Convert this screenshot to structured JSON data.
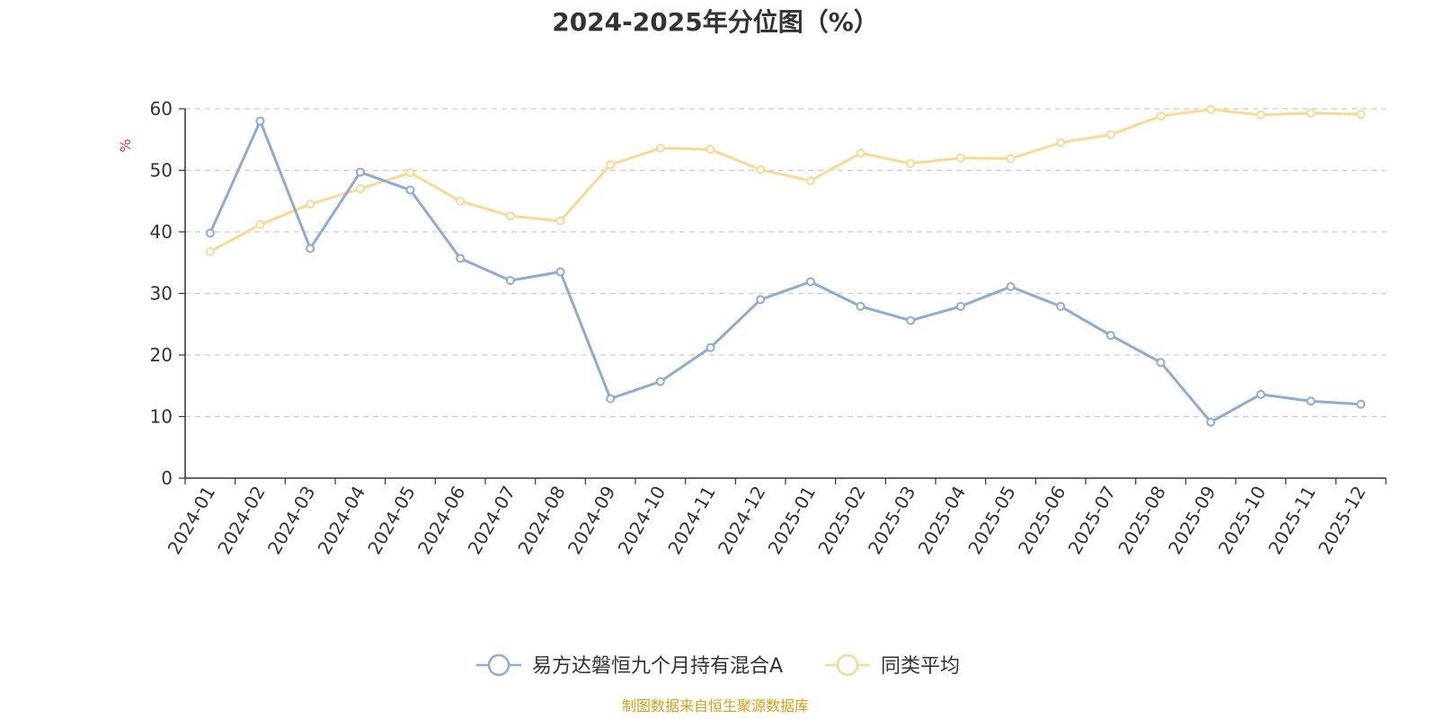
{
  "chart_data": {
    "type": "line",
    "title": "2024-2025年分位图（%）",
    "ylabel": "%",
    "ylim": [
      0,
      60
    ],
    "yticks": [
      0,
      10,
      20,
      30,
      40,
      50,
      60
    ],
    "grid": true,
    "legend_position": "bottom-center",
    "categories": [
      "2024-01",
      "2024-02",
      "2024-03",
      "2024-04",
      "2024-05",
      "2024-06",
      "2024-07",
      "2024-08",
      "2024-09",
      "2024-10",
      "2024-11",
      "2024-12",
      "2025-01",
      "2025-02",
      "2025-03",
      "2025-04",
      "2025-05",
      "2025-06",
      "2025-07",
      "2025-08",
      "2025-09",
      "2025-10",
      "2025-11",
      "2025-12"
    ],
    "series": [
      {
        "name": "易方达磐恒九个月持有混合A",
        "color": "#8eabd6",
        "values": [
          39.8,
          58.0,
          37.3,
          49.7,
          46.8,
          35.7,
          32.1,
          33.5,
          12.9,
          15.7,
          21.2,
          29.0,
          31.9,
          27.9,
          25.6,
          27.9,
          31.1,
          27.9,
          23.2,
          18.8,
          9.1,
          13.6,
          12.5,
          12.0
        ]
      },
      {
        "name": "同类平均",
        "color": "#fbd995",
        "values": [
          36.8,
          41.2,
          44.5,
          47.0,
          49.6,
          45.0,
          42.6,
          41.8,
          50.9,
          53.6,
          53.4,
          50.1,
          48.3,
          52.8,
          51.1,
          52.0,
          51.9,
          54.5,
          55.8,
          58.8,
          59.9,
          59.0,
          59.3,
          59.1
        ]
      }
    ]
  },
  "source_text": "制图数据来自恒生聚源数据库",
  "colors": {
    "axis": "#333333",
    "grid": "#cccccc",
    "ylabel": "#e8352f",
    "source": "#d4a017"
  }
}
